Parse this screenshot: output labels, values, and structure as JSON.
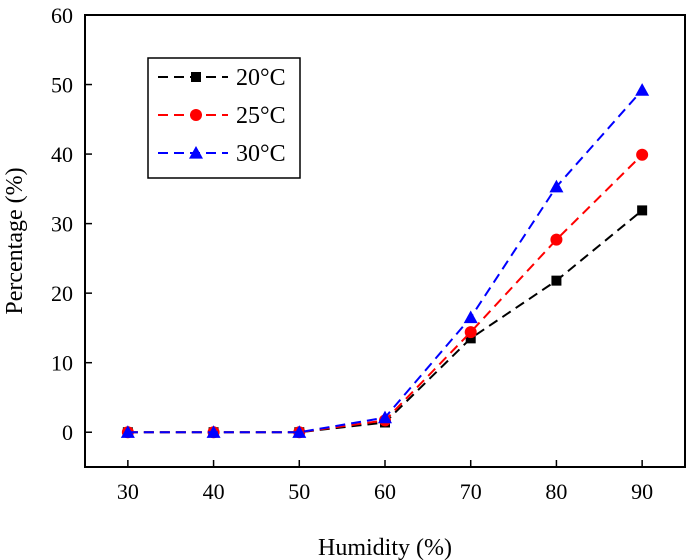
{
  "chart_data": {
    "type": "line",
    "title": "",
    "xlabel": "Humidity (%)",
    "ylabel": "Percentage (%)",
    "xlim": [
      25,
      95
    ],
    "ylim": [
      -5,
      60
    ],
    "xticks": [
      30,
      40,
      50,
      60,
      70,
      80,
      90
    ],
    "yticks": [
      0,
      10,
      20,
      30,
      40,
      50,
      60
    ],
    "grid": false,
    "legend_position": "top-left",
    "x": [
      30,
      40,
      50,
      60,
      70,
      80,
      90
    ],
    "series": [
      {
        "name": "20°C",
        "color": "#000000",
        "marker": "square",
        "values": [
          0,
          0,
          0,
          1.4,
          13.5,
          21.8,
          31.9
        ]
      },
      {
        "name": "25°C",
        "color": "#ff0000",
        "marker": "circle",
        "values": [
          0,
          0,
          0,
          1.7,
          14.4,
          27.7,
          39.9
        ]
      },
      {
        "name": "30°C",
        "color": "#0000ff",
        "marker": "triangle",
        "values": [
          0,
          0,
          0,
          2.1,
          16.5,
          35.3,
          49.2
        ]
      }
    ]
  }
}
